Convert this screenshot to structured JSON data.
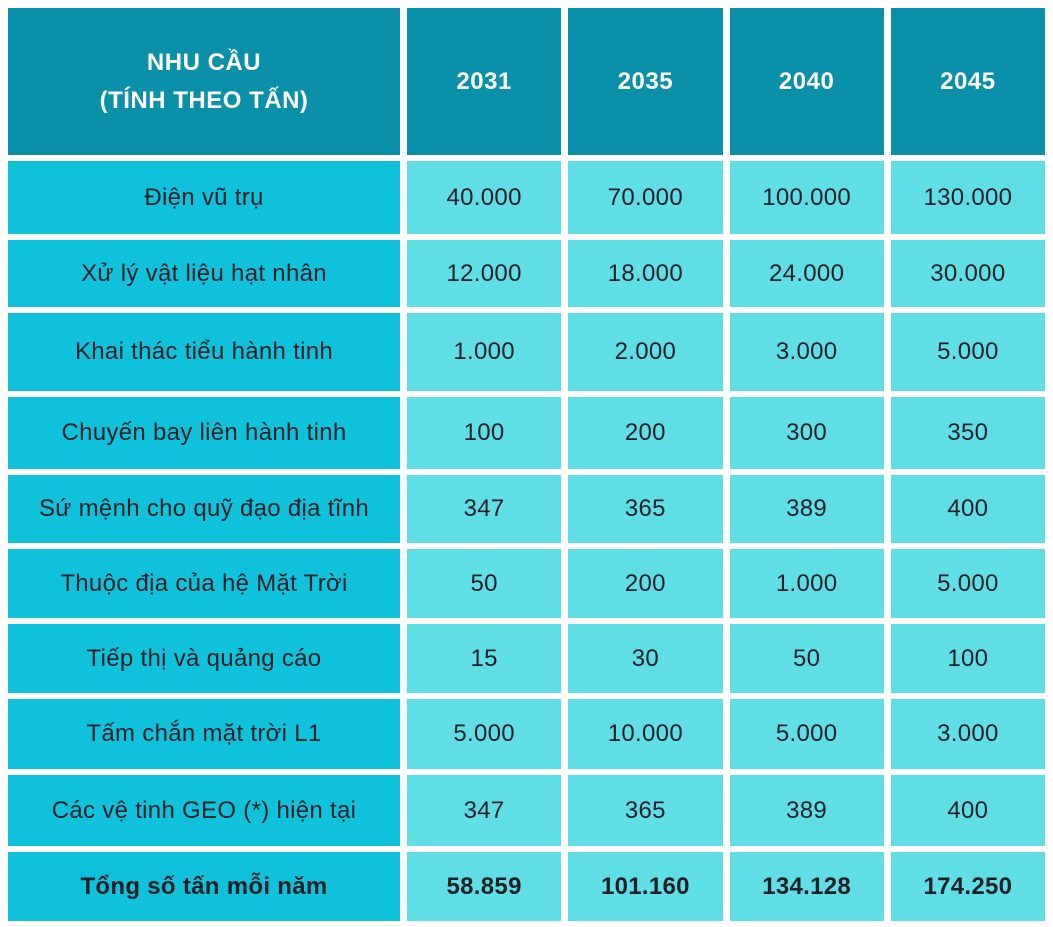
{
  "chart_data": {
    "type": "table",
    "title": "NHU CẦU (TÍNH THEO TẤN)",
    "categories": [
      "2031",
      "2035",
      "2040",
      "2045"
    ],
    "series": [
      {
        "name": "Điện vũ trụ",
        "values": [
          40000,
          70000,
          100000,
          130000
        ]
      },
      {
        "name": "Xử lý vật liệu hạt nhân",
        "values": [
          12000,
          18000,
          24000,
          30000
        ]
      },
      {
        "name": "Khai thác tiểu hành tinh",
        "values": [
          1000,
          2000,
          3000,
          5000
        ]
      },
      {
        "name": "Chuyến bay liên hành tinh",
        "values": [
          100,
          200,
          300,
          350
        ]
      },
      {
        "name": "Sứ mệnh cho quỹ đạo địa tĩnh",
        "values": [
          347,
          365,
          389,
          400
        ]
      },
      {
        "name": "Thuộc địa của hệ Mặt Trời",
        "values": [
          50,
          200,
          1000,
          5000
        ]
      },
      {
        "name": "Tiếp thị và quảng cáo",
        "values": [
          15,
          30,
          50,
          100
        ]
      },
      {
        "name": "Tấm chắn mặt trời L1",
        "values": [
          5000,
          10000,
          5000,
          3000
        ]
      },
      {
        "name": "Các vệ tinh GEO (*) hiện tại",
        "values": [
          347,
          365,
          389,
          400
        ]
      },
      {
        "name": "Tổng số tấn mỗi năm",
        "values": [
          58859,
          101160,
          134128,
          174250
        ]
      }
    ]
  },
  "table": {
    "header": {
      "title_line1": "NHU CẦU",
      "title_line2": "(TÍNH THEO TẤN)",
      "years": [
        "2031",
        "2035",
        "2040",
        "2045"
      ]
    },
    "rows": [
      {
        "label": "Điện vũ trụ",
        "values": [
          "40.000",
          "70.000",
          "100.000",
          "130.000"
        ]
      },
      {
        "label": "Xử lý vật liệu hạt nhân",
        "values": [
          "12.000",
          "18.000",
          "24.000",
          "30.000"
        ]
      },
      {
        "label": "Khai thác tiểu hành tinh",
        "values": [
          "1.000",
          "2.000",
          "3.000",
          "5.000"
        ]
      },
      {
        "label": "Chuyến bay liên hành tinh",
        "values": [
          "100",
          "200",
          "300",
          "350"
        ]
      },
      {
        "label": "Sứ mệnh cho quỹ đạo địa tĩnh",
        "values": [
          "347",
          "365",
          "389",
          "400"
        ]
      },
      {
        "label": "Thuộc địa của hệ Mặt Trời",
        "values": [
          "50",
          "200",
          "1.000",
          "5.000"
        ]
      },
      {
        "label": "Tiếp thị và quảng cáo",
        "values": [
          "15",
          "30",
          "50",
          "100"
        ]
      },
      {
        "label": "Tấm chắn mặt trời L1",
        "values": [
          "5.000",
          "10.000",
          "5.000",
          "3.000"
        ]
      },
      {
        "label": "Các vệ tinh GEO (*) hiện tại",
        "values": [
          "347",
          "365",
          "389",
          "400"
        ]
      }
    ],
    "total": {
      "label": "Tổng số tấn mỗi năm",
      "values": [
        "58.859",
        "101.160",
        "134.128",
        "174.250"
      ]
    }
  },
  "colors": {
    "header_bg": "#0a90a8",
    "label_bg": "#10c1dc",
    "value_bg": "#5fdee6",
    "header_text": "#ffffff",
    "cell_text": "#1d2125",
    "background": "#ffffff"
  }
}
